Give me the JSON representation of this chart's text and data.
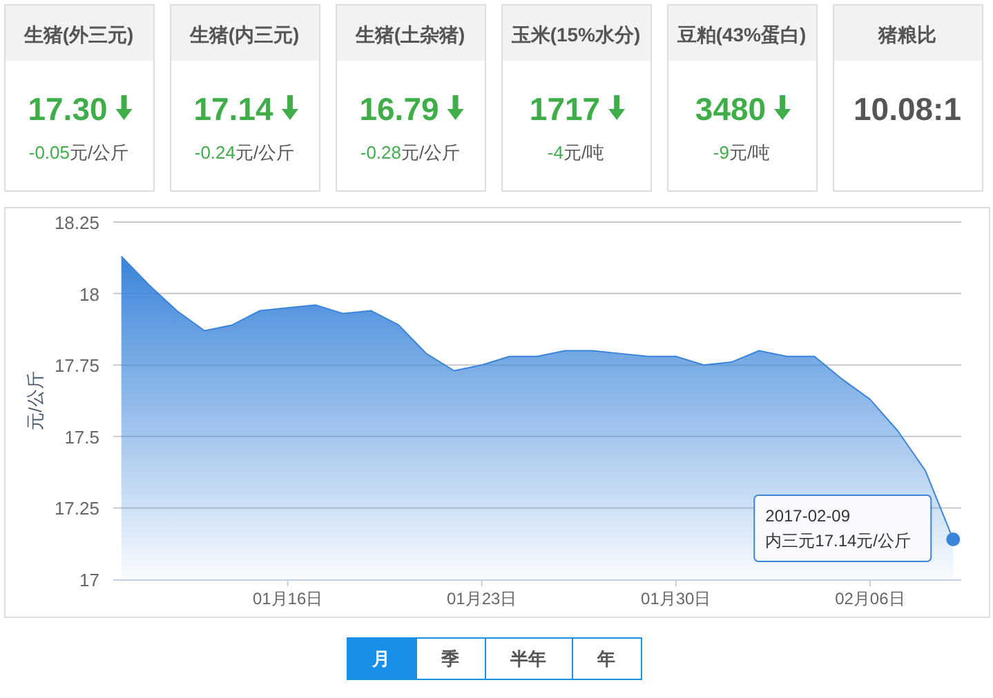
{
  "chart_data": [
    {
      "type": "other",
      "title": "生猪(外三元)",
      "color": "#3fae49",
      "annotations": [
        "17.30",
        "-0.05元/公斤"
      ]
    },
    {
      "type": "other",
      "title": "生猪(内三元)",
      "color": "#3fae49",
      "annotations": [
        "17.14",
        "-0.24元/公斤"
      ]
    },
    {
      "type": "other",
      "title": "生猪(土杂猪)",
      "color": "#3fae49",
      "annotations": [
        "16.79",
        "-0.28元/公斤"
      ]
    },
    {
      "type": "other",
      "title": "玉米(15%水分)",
      "color": "#3fae49",
      "annotations": [
        "1717",
        "-4元/吨"
      ]
    },
    {
      "type": "other",
      "title": "豆粕(43%蛋白)",
      "color": "#3fae49",
      "annotations": [
        "3480",
        "-9元/吨"
      ]
    },
    {
      "type": "other",
      "title": "猪粮比",
      "color": "#555555",
      "annotations": [
        "10.08:1"
      ]
    },
    {
      "type": "area",
      "ylabel": "元/公斤",
      "grid": "y",
      "marker": "none",
      "x": [
        "2017-01-10",
        "2017-01-11",
        "2017-01-12",
        "2017-01-13",
        "2017-01-14",
        "2017-01-15",
        "2017-01-16",
        "2017-01-17",
        "2017-01-18",
        "2017-01-19",
        "2017-01-20",
        "2017-01-21",
        "2017-01-22",
        "2017-01-23",
        "2017-01-24",
        "2017-01-25",
        "2017-01-26",
        "2017-01-27",
        "2017-01-28",
        "2017-01-29",
        "2017-01-30",
        "2017-01-31",
        "2017-02-01",
        "2017-02-02",
        "2017-02-03",
        "2017-02-04",
        "2017-02-05",
        "2017-02-06",
        "2017-02-07",
        "2017-02-08",
        "2017-02-09"
      ],
      "series": [
        {
          "color": "#3a84d9",
          "values": [
            18.13,
            18.03,
            17.94,
            17.87,
            17.89,
            17.94,
            17.95,
            17.96,
            17.93,
            17.94,
            17.89,
            17.79,
            17.73,
            17.75,
            17.78,
            17.78,
            17.8,
            17.8,
            17.79,
            17.78,
            17.78,
            17.75,
            17.76,
            17.8,
            17.78,
            17.78,
            17.7,
            17.63,
            17.52,
            17.38,
            17.14
          ]
        }
      ],
      "xlim": [
        "2017-01-09T17:00",
        "2017-02-09T07:00"
      ],
      "xticks": [
        {
          "value": "2017-01-16",
          "label": "01月16日"
        },
        {
          "value": "2017-01-23",
          "label": "01月23日"
        },
        {
          "value": "2017-01-30",
          "label": "01月30日"
        },
        {
          "value": "2017-02-06",
          "label": "02月06日"
        }
      ],
      "ylim": [
        17,
        18.25
      ],
      "yticks": [
        17,
        17.25,
        17.5,
        17.75,
        18,
        18.25
      ],
      "annotations": [
        {
          "text": "2017-02-09\n内三元17.14元/公斤",
          "x": "2017-02-09",
          "y": 17.14
        },
        "月",
        "季",
        "半年",
        "年"
      ]
    }
  ]
}
